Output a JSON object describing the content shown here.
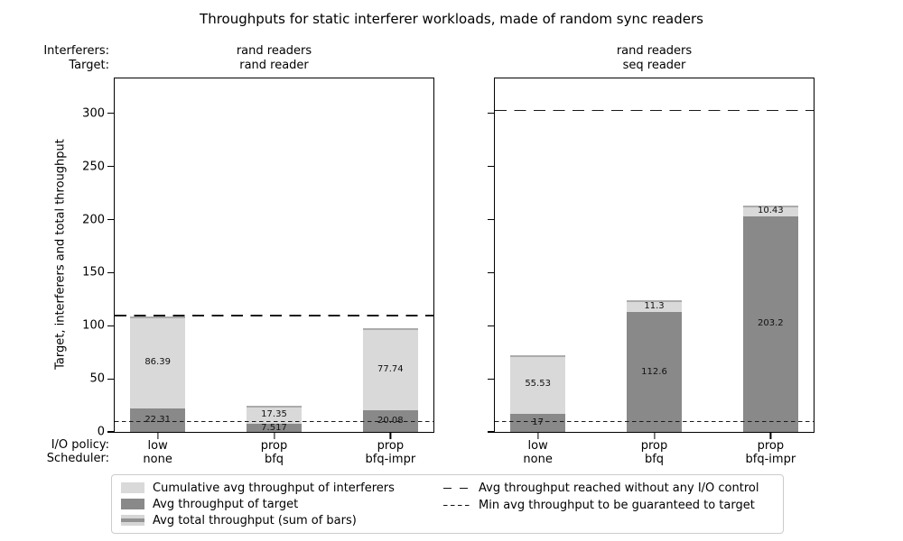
{
  "title": "Throughputs for static interferer workloads, made of random sync readers",
  "header": {
    "interferers_label": "Interferers:",
    "target_label": "Target:",
    "subplots": [
      [
        "rand readers",
        "rand reader"
      ],
      [
        "rand readers",
        "seq reader"
      ]
    ]
  },
  "ylabel": "Target, interferers and total throughput",
  "xaxis": {
    "io_policy_label": "I/O policy:",
    "scheduler_label": "Scheduler:"
  },
  "chart_data": [
    {
      "type": "bar",
      "stacked": true,
      "subtitle": [
        "rand readers",
        "rand reader"
      ],
      "categories": [
        {
          "io_policy": "low",
          "scheduler": "none"
        },
        {
          "io_policy": "prop",
          "scheduler": "bfq"
        },
        {
          "io_policy": "prop",
          "scheduler": "bfq-impr"
        }
      ],
      "series": [
        {
          "name": "Avg throughput of target",
          "values": [
            22.31,
            7.517,
            20.08
          ],
          "labels": [
            "22.31",
            "7.517",
            "20.08"
          ]
        },
        {
          "name": "Cumulative avg throughput of interferers",
          "values": [
            86.39,
            17.35,
            77.74
          ],
          "labels": [
            "86.39",
            "17.35",
            "77.74"
          ]
        }
      ],
      "ref_lines": [
        {
          "name": "Avg throughput reached without any I/O control",
          "value": 110,
          "style": "long-dash"
        },
        {
          "name": "Min avg throughput to be guaranteed to target",
          "value": 10,
          "style": "short-dash"
        }
      ],
      "ylim": [
        0,
        333
      ],
      "yticks": [
        0,
        50,
        100,
        150,
        200,
        250,
        300
      ],
      "show_ytick_labels": true,
      "grid": false
    },
    {
      "type": "bar",
      "stacked": true,
      "subtitle": [
        "rand readers",
        "seq reader"
      ],
      "categories": [
        {
          "io_policy": "low",
          "scheduler": "none"
        },
        {
          "io_policy": "prop",
          "scheduler": "bfq"
        },
        {
          "io_policy": "prop",
          "scheduler": "bfq-impr"
        }
      ],
      "series": [
        {
          "name": "Avg throughput of target",
          "values": [
            17,
            112.6,
            203.2
          ],
          "labels": [
            "17",
            "112.6",
            "203.2"
          ]
        },
        {
          "name": "Cumulative avg throughput of interferers",
          "values": [
            55.53,
            11.3,
            10.43
          ],
          "labels": [
            "55.53",
            "11.3",
            "10.43"
          ]
        }
      ],
      "ref_lines": [
        {
          "name": "Avg throughput reached without any I/O control",
          "value": 303,
          "style": "long-dash"
        },
        {
          "name": "Min avg throughput to be guaranteed to target",
          "value": 10,
          "style": "short-dash"
        }
      ],
      "ylim": [
        0,
        333
      ],
      "yticks": [
        0,
        50,
        100,
        150,
        200,
        250,
        300
      ],
      "show_ytick_labels": false,
      "grid": false
    }
  ],
  "legend": {
    "items": [
      {
        "swatch": "interferers-patch",
        "label": "Cumulative avg throughput of interferers"
      },
      {
        "swatch": "target-patch",
        "label": "Avg throughput of target"
      },
      {
        "swatch": "total-line",
        "label": "Avg total throughput (sum of bars)"
      },
      {
        "swatch": "long-dash",
        "label": "Avg throughput reached without any I/O control"
      },
      {
        "swatch": "short-dash",
        "label": "Min avg throughput to be guaranteed to target"
      }
    ]
  },
  "colors": {
    "interferers_bar": "#d9d9d9",
    "target_bar": "#898989",
    "total_line": "#ababab",
    "ref_line": "#1a1a1a",
    "legend_border": "#cccccc"
  }
}
